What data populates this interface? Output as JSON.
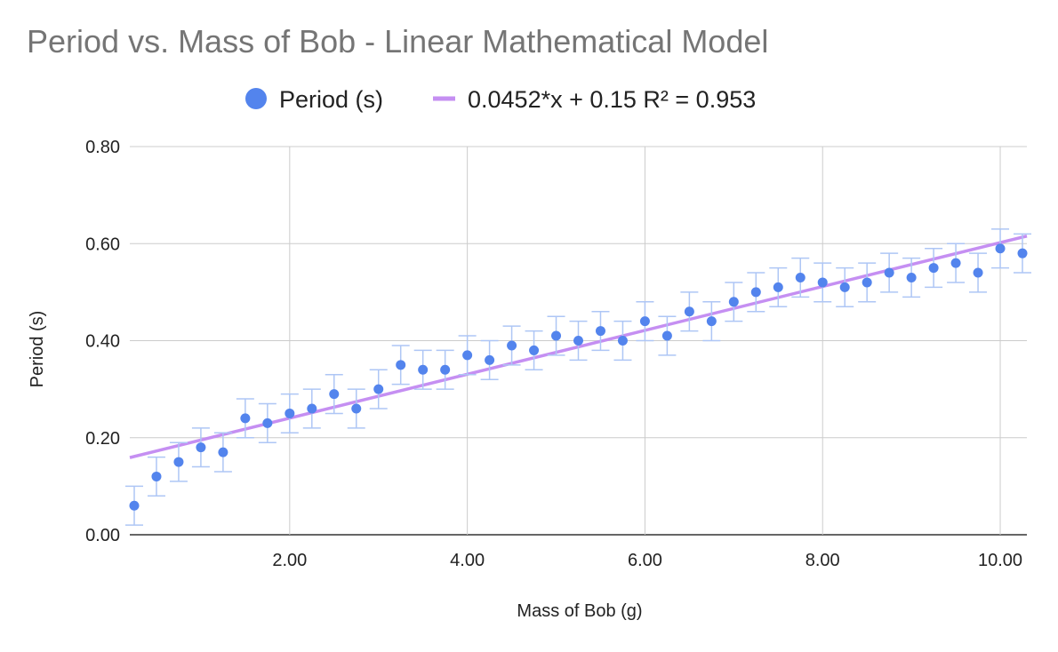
{
  "chart_data": {
    "type": "scatter",
    "title": "Period vs. Mass of Bob - Linear Mathematical Model",
    "xlabel": "Mass of Bob (g)",
    "ylabel": "Period (s)",
    "xlim": [
      0.2,
      10.3
    ],
    "ylim": [
      0,
      0.8
    ],
    "x_ticks": [
      "2.00",
      "4.00",
      "6.00",
      "8.00",
      "10.00"
    ],
    "y_ticks": [
      "0.00",
      "0.20",
      "0.40",
      "0.60",
      "0.80"
    ],
    "grid": true,
    "legend_position": "top",
    "error_bar": 0.04,
    "series": [
      {
        "name": "Period (s)",
        "color": "#5384ed",
        "x": [
          0.25,
          0.5,
          0.75,
          1.0,
          1.25,
          1.5,
          1.75,
          2.0,
          2.25,
          2.5,
          2.75,
          3.0,
          3.25,
          3.5,
          3.75,
          4.0,
          4.25,
          4.5,
          4.75,
          5.0,
          5.25,
          5.5,
          5.75,
          6.0,
          6.25,
          6.5,
          6.75,
          7.0,
          7.25,
          7.5,
          7.75,
          8.0,
          8.25,
          8.5,
          8.75,
          9.0,
          9.25,
          9.5,
          9.75,
          10.0,
          10.25
        ],
        "y": [
          0.06,
          0.12,
          0.15,
          0.18,
          0.17,
          0.24,
          0.23,
          0.25,
          0.26,
          0.29,
          0.26,
          0.3,
          0.35,
          0.34,
          0.34,
          0.37,
          0.36,
          0.39,
          0.38,
          0.41,
          0.4,
          0.42,
          0.4,
          0.44,
          0.41,
          0.46,
          0.44,
          0.48,
          0.5,
          0.51,
          0.53,
          0.52,
          0.51,
          0.52,
          0.54,
          0.53,
          0.55,
          0.56,
          0.54,
          0.59,
          0.58
        ]
      }
    ],
    "trendline": {
      "label": "0.0452*x + 0.15 R² = 0.953",
      "slope": 0.0452,
      "intercept": 0.15,
      "color": "#c58ff2"
    }
  }
}
